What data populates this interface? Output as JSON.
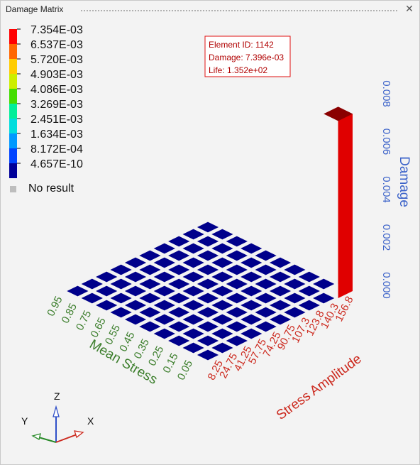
{
  "window": {
    "title": "Damage Matrix"
  },
  "legend": {
    "labels": [
      "7.354E-03",
      "6.537E-03",
      "5.720E-03",
      "4.903E-03",
      "4.086E-03",
      "3.269E-03",
      "2.451E-03",
      "1.634E-03",
      "8.172E-04",
      "4.657E-10"
    ],
    "colors": [
      "#ff0000",
      "#ff6600",
      "#ffcc00",
      "#ccee00",
      "#44dd00",
      "#00ee99",
      "#00dddd",
      "#0099ff",
      "#0044ff",
      "#000099"
    ],
    "no_result_label": "No result",
    "no_result_color": "#bdbdbd"
  },
  "tooltip": {
    "lines": [
      "Element ID: 1142",
      "Damage: 7.396e-03",
      "Life: 1.352e+02"
    ]
  },
  "triad": {
    "z": "Z",
    "y": "Y",
    "x": "X"
  },
  "chart_data": {
    "type": "3d-bar",
    "xlabel": "Stress Amplitude",
    "ylabel": "Mean Stress",
    "zlabel": "Damage",
    "x_ticks": [
      "8.25",
      "24.75",
      "41.25",
      "57.75",
      "74.25",
      "90.75",
      "107.3",
      "123.8",
      "140.3",
      "156.8"
    ],
    "y_ticks": [
      "0.05",
      "0.15",
      "0.25",
      "0.35",
      "0.45",
      "0.55",
      "0.65",
      "0.75",
      "0.85",
      "0.95"
    ],
    "z_ticks": [
      "0.000",
      "0.002",
      "0.004",
      "0.006",
      "0.008"
    ],
    "zlim": [
      0,
      0.008
    ],
    "grid_rows": 10,
    "grid_cols": 10,
    "base_color": "#00008b",
    "bars": [
      {
        "x_index": 9,
        "y_index": 0,
        "value": 0.007396,
        "color": "#cc0000"
      }
    ]
  }
}
